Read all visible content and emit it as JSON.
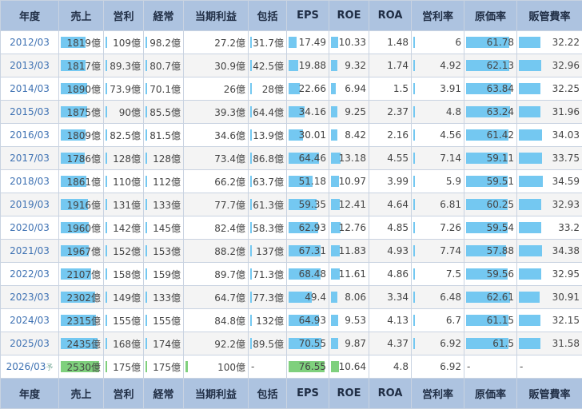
{
  "headers": [
    "年度",
    "売上",
    "営利",
    "経常",
    "当期利益",
    "包括",
    "EPS",
    "ROE",
    "ROA",
    "営利率",
    "原価率",
    "販管費率"
  ],
  "footer_headers": [
    "年度",
    "売上",
    "営利",
    "経常",
    "当期利益",
    "包括",
    "EPS",
    "ROE",
    "ROA",
    "営利率",
    "原価率",
    "販管費率"
  ],
  "colors": {
    "header_bg": "#adc3e0",
    "bar_actual": "#74c8f1",
    "bar_forecast": "#7fd07d",
    "year_link": "#3f72b3"
  },
  "rows": [
    {
      "year": "2012/03",
      "sales": "1819億",
      "op": "109億",
      "ord": "98.2億",
      "net": "27.2億",
      "comp": "31.7億",
      "eps": "17.49",
      "roe": "10.33",
      "roa": "1.48",
      "opm": "6",
      "cost": "61.78",
      "sga": "32.22"
    },
    {
      "year": "2013/03",
      "sales": "1817億",
      "op": "89.3億",
      "ord": "80.7億",
      "net": "30.9億",
      "comp": "42.5億",
      "eps": "19.88",
      "roe": "9.32",
      "roa": "1.74",
      "opm": "4.92",
      "cost": "62.13",
      "sga": "32.96"
    },
    {
      "year": "2014/03",
      "sales": "1890億",
      "op": "73.9億",
      "ord": "70.1億",
      "net": "26億",
      "comp": "28億",
      "eps": "22.66",
      "roe": "6.94",
      "roa": "1.5",
      "opm": "3.91",
      "cost": "63.84",
      "sga": "32.25"
    },
    {
      "year": "2015/03",
      "sales": "1875億",
      "op": "90億",
      "ord": "85.5億",
      "net": "39.3億",
      "comp": "64.4億",
      "eps": "34.16",
      "roe": "9.25",
      "roa": "2.37",
      "opm": "4.8",
      "cost": "63.24",
      "sga": "31.96"
    },
    {
      "year": "2016/03",
      "sales": "1809億",
      "op": "82.5億",
      "ord": "81.5億",
      "net": "34.6億",
      "comp": "13.9億",
      "eps": "30.01",
      "roe": "8.42",
      "roa": "2.16",
      "opm": "4.56",
      "cost": "61.42",
      "sga": "34.03"
    },
    {
      "year": "2017/03",
      "sales": "1786億",
      "op": "128億",
      "ord": "128億",
      "net": "73.4億",
      "comp": "86.8億",
      "eps": "64.46",
      "roe": "13.18",
      "roa": "4.55",
      "opm": "7.14",
      "cost": "59.11",
      "sga": "33.75"
    },
    {
      "year": "2018/03",
      "sales": "1861億",
      "op": "110億",
      "ord": "112億",
      "net": "66.2億",
      "comp": "63.7億",
      "eps": "51.18",
      "roe": "10.97",
      "roa": "3.99",
      "opm": "5.9",
      "cost": "59.51",
      "sga": "34.59"
    },
    {
      "year": "2019/03",
      "sales": "1916億",
      "op": "131億",
      "ord": "133億",
      "net": "77.7億",
      "comp": "61.3億",
      "eps": "59.35",
      "roe": "12.41",
      "roa": "4.64",
      "opm": "6.81",
      "cost": "60.25",
      "sga": "32.93"
    },
    {
      "year": "2020/03",
      "sales": "1960億",
      "op": "142億",
      "ord": "145億",
      "net": "82.4億",
      "comp": "58.3億",
      "eps": "62.93",
      "roe": "12.76",
      "roa": "4.85",
      "opm": "7.26",
      "cost": "59.54",
      "sga": "33.2"
    },
    {
      "year": "2021/03",
      "sales": "1967億",
      "op": "152億",
      "ord": "153億",
      "net": "88.2億",
      "comp": "137億",
      "eps": "67.31",
      "roe": "11.83",
      "roa": "4.93",
      "opm": "7.74",
      "cost": "57.88",
      "sga": "34.38"
    },
    {
      "year": "2022/03",
      "sales": "2107億",
      "op": "158億",
      "ord": "159億",
      "net": "89.7億",
      "comp": "71.3億",
      "eps": "68.48",
      "roe": "11.61",
      "roa": "4.86",
      "opm": "7.5",
      "cost": "59.56",
      "sga": "32.95"
    },
    {
      "year": "2023/03",
      "sales": "2302億",
      "op": "149億",
      "ord": "133億",
      "net": "64.7億",
      "comp": "77.3億",
      "eps": "49.4",
      "roe": "8.06",
      "roa": "3.34",
      "opm": "6.48",
      "cost": "62.61",
      "sga": "30.91"
    },
    {
      "year": "2024/03",
      "sales": "2315億",
      "op": "155億",
      "ord": "155億",
      "net": "84.8億",
      "comp": "132億",
      "eps": "64.93",
      "roe": "9.53",
      "roa": "4.13",
      "opm": "6.7",
      "cost": "61.15",
      "sga": "32.15"
    },
    {
      "year": "2025/03",
      "sales": "2435億",
      "op": "168億",
      "ord": "174億",
      "net": "92.2億",
      "comp": "89.5億",
      "eps": "70.55",
      "roe": "9.87",
      "roa": "4.37",
      "opm": "6.92",
      "cost": "61.5",
      "sga": "31.58"
    },
    {
      "year": "2026/03",
      "year_suffix": "予",
      "forecast": true,
      "sales": "2530億",
      "op": "175億",
      "ord": "175億",
      "net": "100億",
      "comp": "-",
      "eps": "76.55",
      "roe": "10.64",
      "roa": "4.8",
      "opm": "6.92",
      "cost": "-",
      "sga": "-"
    }
  ],
  "bar_fractions": {
    "sales": [
      0.65,
      0.65,
      0.69,
      0.68,
      0.65,
      0.63,
      0.67,
      0.7,
      0.72,
      0.73,
      0.8,
      0.9,
      0.91,
      0.96,
      1.0
    ],
    "op": [
      0.03,
      0.03,
      0.03,
      0.03,
      0.03,
      0.03,
      0.03,
      0.03,
      0.03,
      0.03,
      0.03,
      0.03,
      0.03,
      0.03,
      0.04
    ],
    "ord": [
      0.03,
      0.03,
      0.03,
      0.03,
      0.03,
      0.03,
      0.03,
      0.03,
      0.03,
      0.03,
      0.03,
      0.03,
      0.03,
      0.03,
      0.04
    ],
    "net": [
      0.0,
      0.0,
      0.0,
      0.0,
      0.0,
      0.0,
      0.0,
      0.0,
      0.0,
      0.0,
      0.0,
      0.0,
      0.0,
      0.0,
      0.04
    ],
    "comp": [
      0.03,
      0.03,
      0.03,
      0.03,
      0.03,
      0.03,
      0.03,
      0.03,
      0.03,
      0.03,
      0.03,
      0.03,
      0.03,
      0.03,
      0.0
    ],
    "eps": [
      0.23,
      0.26,
      0.3,
      0.45,
      0.39,
      0.84,
      0.67,
      0.78,
      0.82,
      0.88,
      0.89,
      0.65,
      0.85,
      0.92,
      1.0
    ],
    "roe": [
      0.22,
      0.2,
      0.15,
      0.2,
      0.18,
      0.29,
      0.24,
      0.27,
      0.28,
      0.26,
      0.25,
      0.18,
      0.21,
      0.22,
      0.23
    ],
    "roa": [
      0.0,
      0.0,
      0.0,
      0.0,
      0.0,
      0.0,
      0.0,
      0.0,
      0.0,
      0.0,
      0.0,
      0.0,
      0.0,
      0.0,
      0.0
    ],
    "opm": [
      0.03,
      0.03,
      0.03,
      0.03,
      0.03,
      0.03,
      0.03,
      0.03,
      0.03,
      0.03,
      0.03,
      0.03,
      0.03,
      0.03,
      0.0
    ],
    "cost": [
      0.93,
      0.93,
      0.96,
      0.95,
      0.92,
      0.89,
      0.89,
      0.9,
      0.89,
      0.87,
      0.89,
      0.94,
      0.92,
      0.92,
      0.0
    ],
    "sga": [
      0.37,
      0.38,
      0.37,
      0.37,
      0.39,
      0.39,
      0.4,
      0.38,
      0.38,
      0.39,
      0.38,
      0.35,
      0.37,
      0.36,
      0.0
    ]
  }
}
